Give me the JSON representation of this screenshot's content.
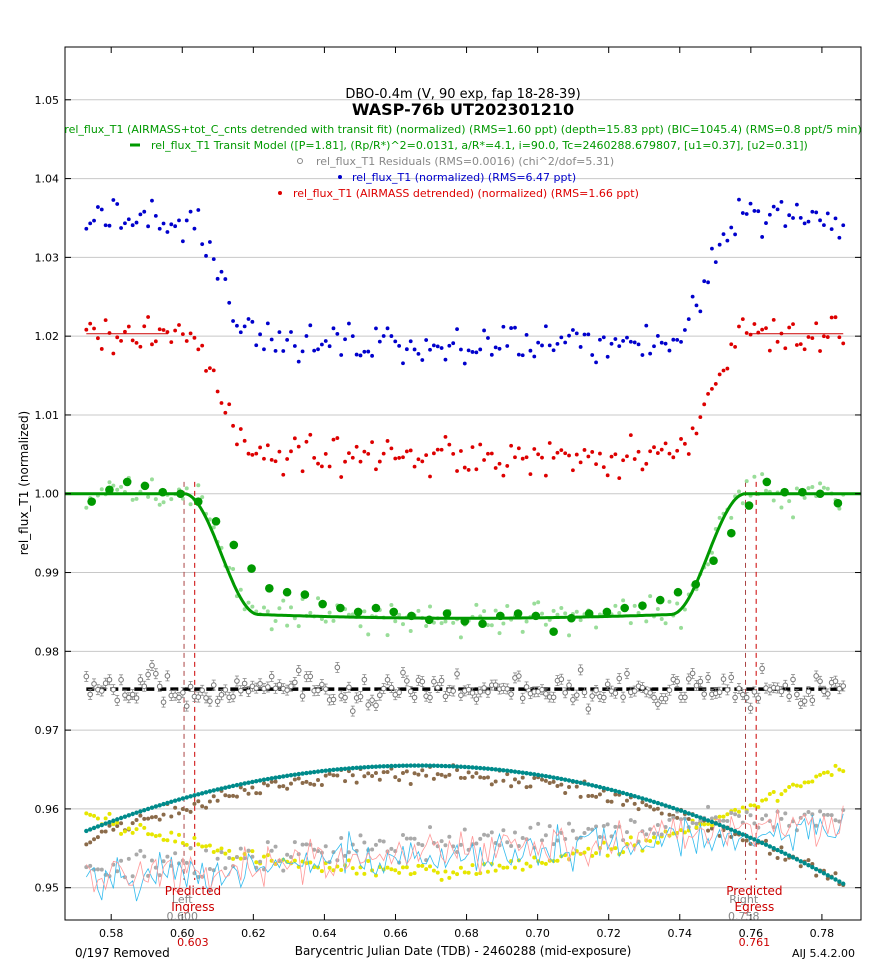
{
  "chart_data": {
    "type": "scatter",
    "title": "WASP-76b UT202301210",
    "subtitle": "DBO-0.4m (V, 90 exp, fap 18-28-39)",
    "xlabel": "Barycentric Julian Date (TDB) - 2460288 (mid-exposure)",
    "ylabel": "rel_flux_T1 (normalized)",
    "xlim": [
      0.567,
      0.791
    ],
    "ylim": [
      0.9459,
      1.0567
    ],
    "x_ticks": [
      0.58,
      0.6,
      0.62,
      0.64,
      0.66,
      0.68,
      0.7,
      0.72,
      0.74,
      0.76,
      0.78
    ],
    "x_tick_labels": [
      "0.58",
      "0.60",
      "0.62",
      "0.64",
      "0.66",
      "0.68",
      "0.70",
      "0.72",
      "0.74",
      "0.76",
      "0.78"
    ],
    "y_ticks": [
      0.95,
      0.96,
      0.97,
      0.98,
      0.99,
      1.0,
      1.01,
      1.02,
      1.03,
      1.04,
      1.05
    ],
    "y_tick_labels": [
      "0.95",
      "0.96",
      "0.97",
      "0.98",
      "0.99",
      "1.00",
      "1.01",
      "1.02",
      "1.03",
      "1.04",
      "1.05"
    ],
    "grid": "horizontal",
    "legend": [
      {
        "text": "rel_flux_T1 (AIRMASS+tot_C_cnts detrended with transit fit) (normalized) (RMS=1.60 ppt) (depth=15.83 ppt) (BIC=1045.4) (RMS=0.8 ppt/5 min)",
        "color": "#009900",
        "marker": "none"
      },
      {
        "text": "rel_flux_T1 Transit Model ([P=1.81], (Rp/R*)^2=0.0131, a/R*=4.1, i=90.0, Tc=2460288.679807, [u1=0.37], [u2=0.31])",
        "color": "#009900",
        "marker": "line"
      },
      {
        "text": "rel_flux_T1 Residuals (RMS=0.0016) (chi^2/dof=5.31)",
        "color": "#888888",
        "marker": "circle"
      },
      {
        "text": "rel_flux_T1 (normalized) (RMS=6.47 ppt)",
        "color": "#0000cc",
        "marker": "dot"
      },
      {
        "text": "rel_flux_T1 (AIRMASS detrended) (normalized) (RMS=1.66 ppt)",
        "color": "#dd0000",
        "marker": "dot"
      }
    ],
    "transit_model": {
      "t1": 0.6005,
      "t2": 0.6215,
      "t3": 0.7375,
      "t4": 0.7585,
      "depth": 0.0158,
      "base": 1.0
    },
    "series": [
      {
        "name": "rel_flux_T1 (normalized)",
        "color": "#0000cc",
        "offset": 1.035,
        "noise": 0.0018
      },
      {
        "name": "rel_flux_T1 (AIRMASS detrended)",
        "color": "#dd0000",
        "offset": 1.0203,
        "noise": 0.0017
      },
      {
        "name": "rel_flux_T1 (AIRMASS+tot_C_cnts detrended with transit fit)",
        "color": "#009900",
        "offset": 1.0,
        "noise": 0.0015
      },
      {
        "name": "rel_flux_T1 Residuals",
        "color": "#888888",
        "offset": 0.9752,
        "noise": 0.0015
      }
    ],
    "binned_points": [
      {
        "x": 0.5745,
        "y": 0.999
      },
      {
        "x": 0.5795,
        "y": 1.0005
      },
      {
        "x": 0.5845,
        "y": 1.0015
      },
      {
        "x": 0.5895,
        "y": 1.001
      },
      {
        "x": 0.5945,
        "y": 1.0002
      },
      {
        "x": 0.5995,
        "y": 1.0
      },
      {
        "x": 0.6045,
        "y": 0.999
      },
      {
        "x": 0.6095,
        "y": 0.9965
      },
      {
        "x": 0.6145,
        "y": 0.9935
      },
      {
        "x": 0.6195,
        "y": 0.9905
      },
      {
        "x": 0.6245,
        "y": 0.988
      },
      {
        "x": 0.6295,
        "y": 0.9875
      },
      {
        "x": 0.6345,
        "y": 0.9872
      },
      {
        "x": 0.6395,
        "y": 0.986
      },
      {
        "x": 0.6445,
        "y": 0.9855
      },
      {
        "x": 0.6495,
        "y": 0.985
      },
      {
        "x": 0.6545,
        "y": 0.9855
      },
      {
        "x": 0.6595,
        "y": 0.985
      },
      {
        "x": 0.6645,
        "y": 0.9845
      },
      {
        "x": 0.6695,
        "y": 0.984
      },
      {
        "x": 0.6745,
        "y": 0.9848
      },
      {
        "x": 0.6795,
        "y": 0.9838
      },
      {
        "x": 0.6845,
        "y": 0.9835
      },
      {
        "x": 0.6895,
        "y": 0.9845
      },
      {
        "x": 0.6945,
        "y": 0.9848
      },
      {
        "x": 0.6995,
        "y": 0.9845
      },
      {
        "x": 0.7045,
        "y": 0.9825
      },
      {
        "x": 0.7095,
        "y": 0.9842
      },
      {
        "x": 0.7145,
        "y": 0.9848
      },
      {
        "x": 0.7195,
        "y": 0.985
      },
      {
        "x": 0.7245,
        "y": 0.9855
      },
      {
        "x": 0.7295,
        "y": 0.9858
      },
      {
        "x": 0.7345,
        "y": 0.9865
      },
      {
        "x": 0.7395,
        "y": 0.9875
      },
      {
        "x": 0.7445,
        "y": 0.9885
      },
      {
        "x": 0.7495,
        "y": 0.9915
      },
      {
        "x": 0.7545,
        "y": 0.995
      },
      {
        "x": 0.7595,
        "y": 0.9985
      },
      {
        "x": 0.7645,
        "y": 1.0015
      },
      {
        "x": 0.7695,
        "y": 1.0002
      },
      {
        "x": 0.7745,
        "y": 1.0002
      },
      {
        "x": 0.7795,
        "y": 1.0
      },
      {
        "x": 0.7845,
        "y": 0.9988
      }
    ],
    "comparison_series": [
      {
        "name": "teal airmass-like",
        "color": "#008b8b",
        "x_peak": 0.6665,
        "y_peak": 0.9655,
        "y_start": 0.9572,
        "y_end": 0.9505
      },
      {
        "name": "brown",
        "color": "#8b6b4a",
        "x_peak": 0.6665,
        "y_peak": 0.9645,
        "y_start": 0.956,
        "y_end": 0.9505
      },
      {
        "name": "yellow",
        "color": "#e6e600",
        "x_min": 0.6665,
        "y_min": 0.9522,
        "y_start": 0.9595,
        "y_end": 0.9655
      },
      {
        "name": "gray scatter",
        "color": "#aaaaaa",
        "y_start": 0.9525,
        "y_end": 0.9595
      },
      {
        "name": "cyan line",
        "color": "#33bbee",
        "y_start": 0.951,
        "y_end": 0.9575
      },
      {
        "name": "pink line",
        "color": "#ff9999",
        "y_start": 0.951,
        "y_end": 0.9585
      }
    ],
    "annotations": [
      {
        "text": "Predicted",
        "color": "#cc0000",
        "x": 0.603
      },
      {
        "text": "Left",
        "color": "#888888",
        "x": 0.6
      },
      {
        "text": "Ingress",
        "color": "#cc0000",
        "x": 0.603
      },
      {
        "text": "0.600",
        "color": "#888888",
        "x": 0.6
      },
      {
        "text": "0.603",
        "color": "#cc0000",
        "x": 0.603
      },
      {
        "text": "Predicted",
        "color": "#cc0000",
        "x": 0.761
      },
      {
        "text": "Right",
        "color": "#888888",
        "x": 0.758
      },
      {
        "text": "Egress",
        "color": "#cc0000",
        "x": 0.761
      },
      {
        "text": "0.758",
        "color": "#888888",
        "x": 0.758
      },
      {
        "text": "0.761",
        "color": "#cc0000",
        "x": 0.761
      }
    ],
    "vlines": [
      {
        "x": 0.6005,
        "color": "#aa4444"
      },
      {
        "x": 0.6035,
        "color": "#cc0000"
      },
      {
        "x": 0.7585,
        "color": "#aa4444"
      },
      {
        "x": 0.7615,
        "color": "#cc0000"
      }
    ],
    "footer_left": "0/197 Removed",
    "footer_right": "AIJ 5.4.2.00"
  }
}
